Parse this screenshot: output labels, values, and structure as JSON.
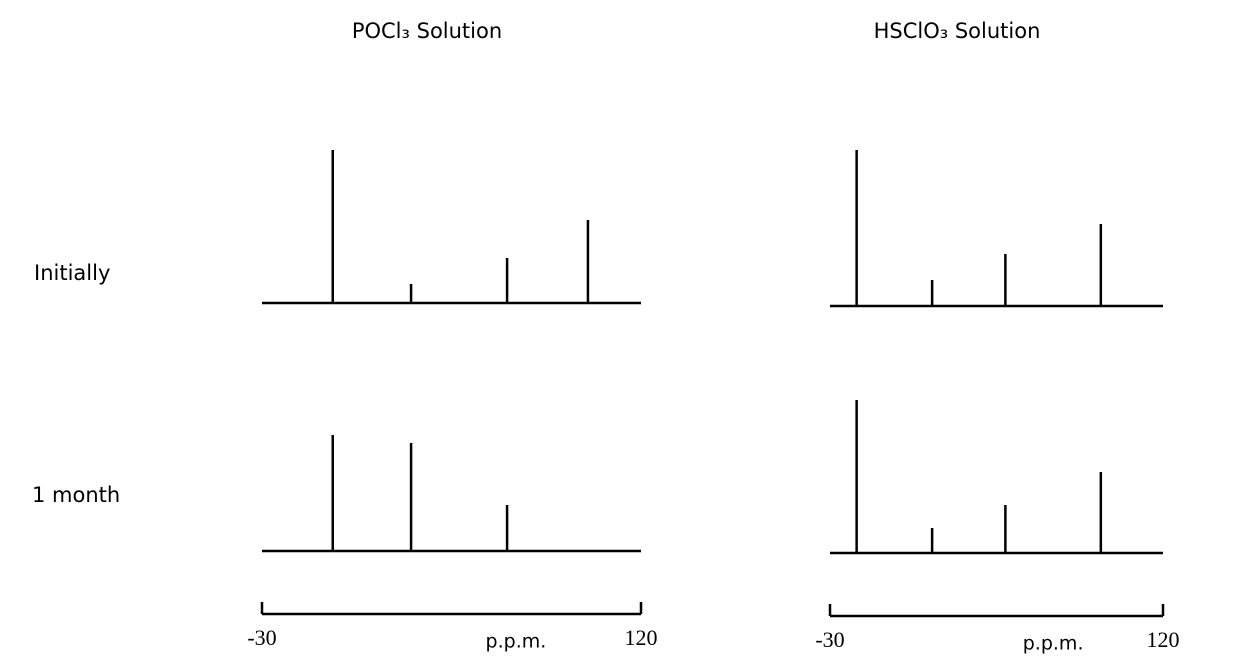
{
  "column_titles": [
    "POCl₃ Solution",
    "HSClO₃ Solution"
  ],
  "row_labels": [
    "Initially",
    "1 month"
  ],
  "chart_data": [
    {
      "type": "stick",
      "x": [
        -2,
        29,
        67,
        99
      ],
      "values": [
        153,
        19,
        45,
        83
      ],
      "xlim": [
        -30,
        120
      ],
      "ylim": [
        0,
        160
      ]
    },
    {
      "type": "stick",
      "x": [
        -18,
        16,
        49,
        92
      ],
      "values": [
        156,
        26,
        52,
        82
      ],
      "xlim": [
        -30,
        120
      ],
      "ylim": [
        0,
        160
      ]
    },
    {
      "type": "stick",
      "x": [
        -2,
        29,
        67
      ],
      "values": [
        116,
        108,
        46
      ],
      "xlim": [
        -30,
        120
      ],
      "ylim": [
        0,
        160
      ],
      "xticks": [
        -30,
        120
      ],
      "xlabel": "p.p.m."
    },
    {
      "type": "stick",
      "x": [
        -18,
        16,
        49,
        92
      ],
      "values": [
        153,
        25,
        48,
        81
      ],
      "xlim": [
        -30,
        120
      ],
      "ylim": [
        0,
        160
      ],
      "xticks": [
        -30,
        120
      ],
      "xlabel": "p.p.m."
    }
  ]
}
